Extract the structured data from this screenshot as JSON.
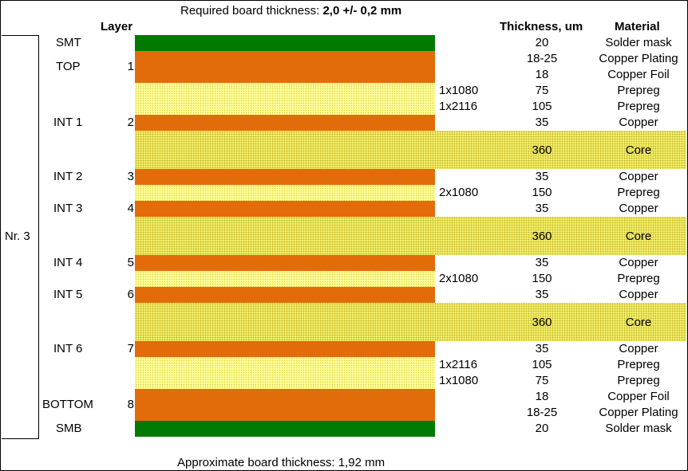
{
  "header": {
    "required_label": "Required board thickness: ",
    "required_value": "2,0 +/- 0,2 mm",
    "layer_col": "Layer",
    "thickness_col": "Thickness, um",
    "material_col": "Material"
  },
  "group_label": "Nr. 3",
  "footer": "Approximate board thickness: 1,92 mm",
  "colors": {
    "solder_mask": "#007a00",
    "copper": "#e36c0a",
    "prepreg": "#ffff99",
    "core": "#f3ef6a"
  },
  "rows": [
    {
      "layer_name": "SMT",
      "layer_num": "",
      "spec": "",
      "thickness": "20",
      "material": "Solder mask"
    },
    {
      "layer_name": "",
      "layer_num": "",
      "spec": "",
      "thickness": "18-25",
      "material": "Copper Plating"
    },
    {
      "layer_name": "TOP",
      "layer_num": "1",
      "spec": "",
      "thickness": "18",
      "material": "Copper Foil"
    },
    {
      "layer_name": "",
      "layer_num": "",
      "spec": "1x1080",
      "thickness": "75",
      "material": "Prepreg"
    },
    {
      "layer_name": "",
      "layer_num": "",
      "spec": "1x2116",
      "thickness": "105",
      "material": "Prepreg"
    },
    {
      "layer_name": "INT 1",
      "layer_num": "2",
      "spec": "",
      "thickness": "35",
      "material": "Copper"
    },
    {
      "layer_name": "",
      "layer_num": "",
      "spec": "",
      "thickness": "360",
      "material": "Core"
    },
    {
      "layer_name": "INT 2",
      "layer_num": "3",
      "spec": "",
      "thickness": "35",
      "material": "Copper"
    },
    {
      "layer_name": "",
      "layer_num": "",
      "spec": "2x1080",
      "thickness": "150",
      "material": "Prepreg"
    },
    {
      "layer_name": "INT 3",
      "layer_num": "4",
      "spec": "",
      "thickness": "35",
      "material": "Copper"
    },
    {
      "layer_name": "",
      "layer_num": "",
      "spec": "",
      "thickness": "360",
      "material": "Core"
    },
    {
      "layer_name": "INT 4",
      "layer_num": "5",
      "spec": "",
      "thickness": "35",
      "material": "Copper"
    },
    {
      "layer_name": "",
      "layer_num": "",
      "spec": "2x1080",
      "thickness": "150",
      "material": "Prepreg"
    },
    {
      "layer_name": "INT 5",
      "layer_num": "6",
      "spec": "",
      "thickness": "35",
      "material": "Copper"
    },
    {
      "layer_name": "",
      "layer_num": "",
      "spec": "",
      "thickness": "360",
      "material": "Core"
    },
    {
      "layer_name": "INT 6",
      "layer_num": "7",
      "spec": "",
      "thickness": "35",
      "material": "Copper"
    },
    {
      "layer_name": "",
      "layer_num": "",
      "spec": "1x2116",
      "thickness": "105",
      "material": "Prepreg"
    },
    {
      "layer_name": "",
      "layer_num": "",
      "spec": "1x1080",
      "thickness": "75",
      "material": "Prepreg"
    },
    {
      "layer_name": "BOTTOM",
      "layer_num": "8",
      "spec": "",
      "thickness": "18",
      "material": "Copper Foil"
    },
    {
      "layer_name": "",
      "layer_num": "",
      "spec": "",
      "thickness": "18-25",
      "material": "Copper Plating"
    },
    {
      "layer_name": "SMB",
      "layer_num": "",
      "spec": "",
      "thickness": "20",
      "material": "Solder mask"
    }
  ]
}
